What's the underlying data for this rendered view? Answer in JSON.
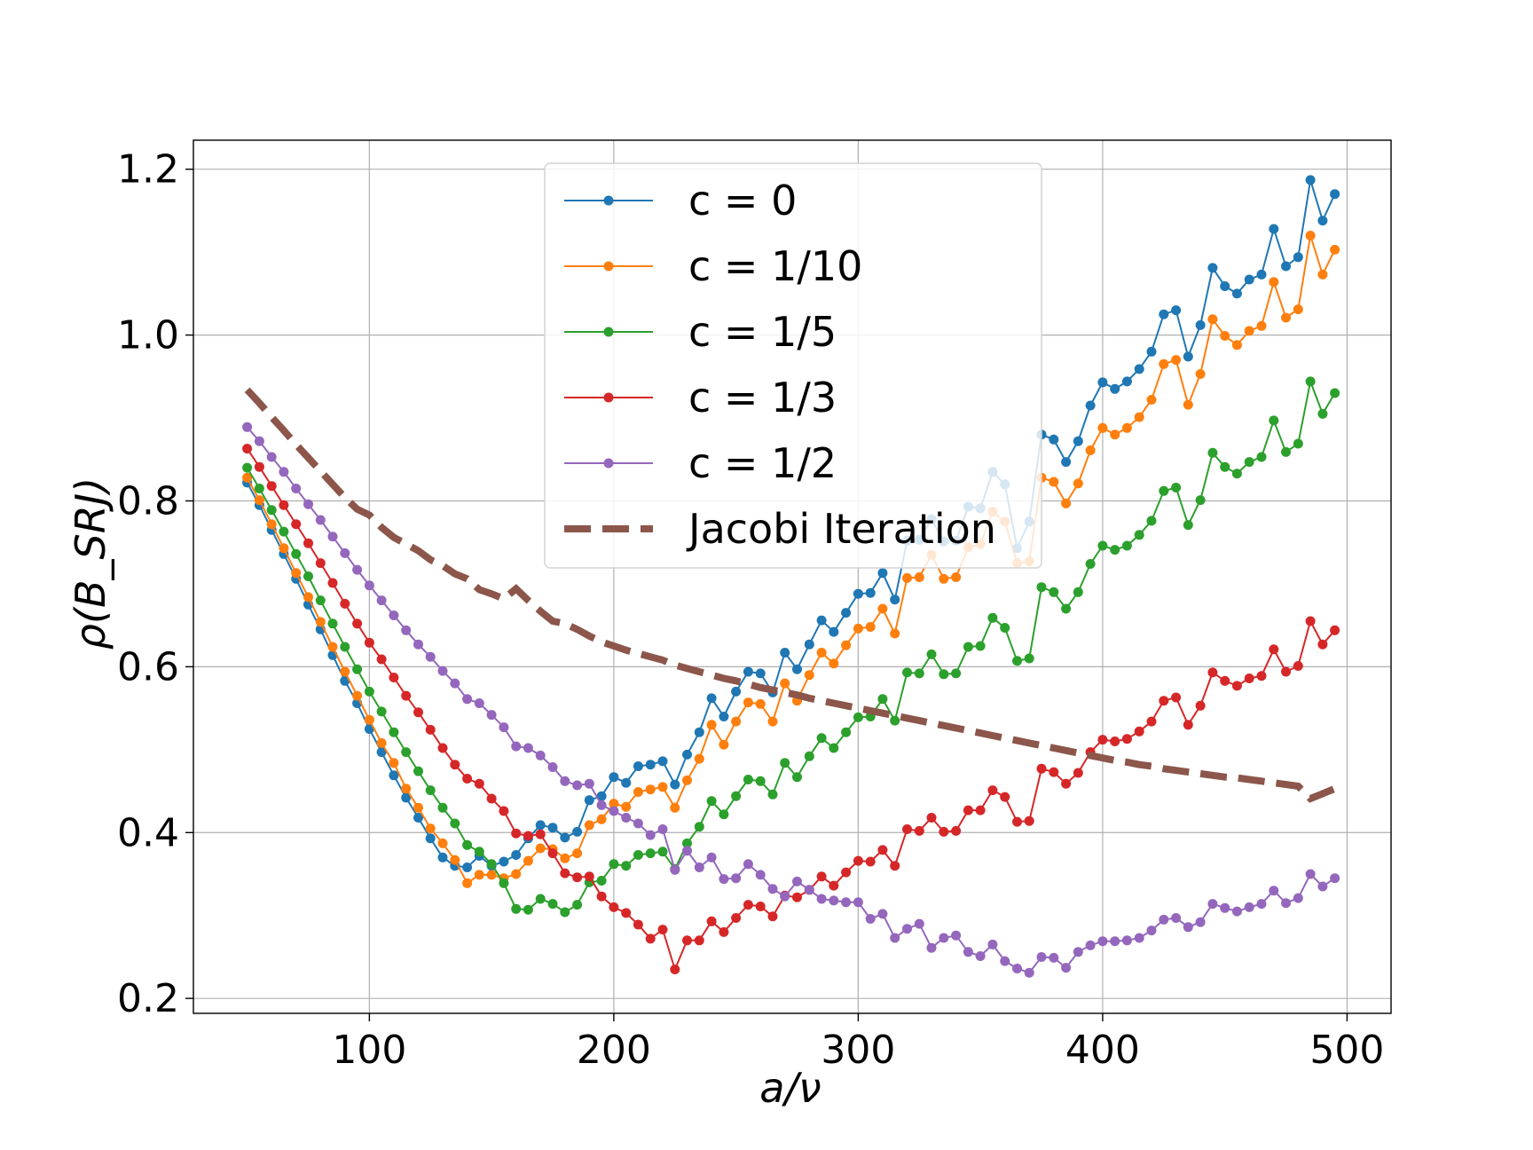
{
  "chart_data": {
    "type": "line",
    "xlabel": "a/ν",
    "ylabel": "ρ(B_SRJ)",
    "xlim": [
      28,
      518
    ],
    "ylim": [
      0.182,
      1.235
    ],
    "xticks": [
      100,
      200,
      300,
      400,
      500
    ],
    "yticks": [
      0.2,
      0.4,
      0.6,
      0.8,
      1.0,
      1.2
    ],
    "xtick_labels": [
      "100",
      "200",
      "300",
      "400",
      "500"
    ],
    "ytick_labels": [
      "0.2",
      "0.4",
      "0.6",
      "0.8",
      "1.0",
      "1.2"
    ],
    "grid": true,
    "legend": "top-center",
    "x": [
      50,
      55,
      60,
      65,
      70,
      75,
      80,
      85,
      90,
      95,
      100,
      105,
      110,
      115,
      120,
      125,
      130,
      135,
      140,
      145,
      150,
      155,
      160,
      165,
      170,
      175,
      180,
      185,
      190,
      195,
      200,
      205,
      210,
      215,
      220,
      225,
      230,
      235,
      240,
      245,
      250,
      255,
      260,
      265,
      270,
      275,
      280,
      285,
      290,
      295,
      300,
      305,
      310,
      315,
      320,
      325,
      330,
      335,
      340,
      345,
      350,
      355,
      360,
      365,
      370,
      375,
      380,
      385,
      390,
      395,
      400,
      405,
      410,
      415,
      420,
      425,
      430,
      435,
      440,
      445,
      450,
      455,
      460,
      465,
      470,
      475,
      480,
      485,
      490,
      495
    ],
    "series": [
      {
        "name": "c = 0",
        "color": "#1f77b4",
        "style": "line-marker",
        "values": [
          0.822,
          0.795,
          0.765,
          0.736,
          0.706,
          0.675,
          0.645,
          0.614,
          0.583,
          0.556,
          0.525,
          0.497,
          0.469,
          0.442,
          0.418,
          0.393,
          0.37,
          0.36,
          0.358,
          0.372,
          0.36,
          0.365,
          0.373,
          0.393,
          0.409,
          0.406,
          0.394,
          0.401,
          0.439,
          0.444,
          0.467,
          0.46,
          0.48,
          0.482,
          0.486,
          0.458,
          0.494,
          0.521,
          0.562,
          0.54,
          0.57,
          0.594,
          0.592,
          0.569,
          0.617,
          0.597,
          0.627,
          0.656,
          0.642,
          0.665,
          0.688,
          0.689,
          0.713,
          0.681,
          0.752,
          0.753,
          0.778,
          0.751,
          0.752,
          0.793,
          0.791,
          0.835,
          0.82,
          0.743,
          0.775,
          0.88,
          0.874,
          0.847,
          0.872,
          0.915,
          0.943,
          0.935,
          0.944,
          0.959,
          0.98,
          1.025,
          1.03,
          0.974,
          1.012,
          1.081,
          1.059,
          1.05,
          1.067,
          1.073,
          1.128,
          1.083,
          1.094,
          1.187,
          1.138,
          1.17
        ]
      },
      {
        "name": "c = 1/10",
        "color": "#ff7f0e",
        "style": "line-marker",
        "values": [
          0.828,
          0.801,
          0.772,
          0.743,
          0.713,
          0.684,
          0.654,
          0.624,
          0.594,
          0.565,
          0.536,
          0.508,
          0.484,
          0.453,
          0.43,
          0.405,
          0.387,
          0.367,
          0.339,
          0.349,
          0.349,
          0.345,
          0.35,
          0.366,
          0.381,
          0.38,
          0.369,
          0.375,
          0.409,
          0.416,
          0.435,
          0.431,
          0.449,
          0.452,
          0.455,
          0.43,
          0.463,
          0.489,
          0.53,
          0.506,
          0.534,
          0.557,
          0.555,
          0.534,
          0.58,
          0.559,
          0.59,
          0.617,
          0.604,
          0.626,
          0.646,
          0.648,
          0.67,
          0.64,
          0.707,
          0.708,
          0.735,
          0.706,
          0.708,
          0.744,
          0.748,
          0.787,
          0.775,
          0.725,
          0.727,
          0.828,
          0.823,
          0.797,
          0.821,
          0.861,
          0.888,
          0.88,
          0.888,
          0.901,
          0.922,
          0.965,
          0.97,
          0.916,
          0.953,
          1.019,
          0.999,
          0.988,
          1.005,
          1.011,
          1.064,
          1.021,
          1.031,
          1.12,
          1.073,
          1.103
        ]
      },
      {
        "name": "c = 1/5",
        "color": "#2ca02c",
        "style": "line-marker",
        "values": [
          0.84,
          0.815,
          0.789,
          0.763,
          0.736,
          0.709,
          0.68,
          0.652,
          0.624,
          0.597,
          0.57,
          0.546,
          0.521,
          0.497,
          0.474,
          0.451,
          0.43,
          0.411,
          0.385,
          0.377,
          0.362,
          0.339,
          0.308,
          0.307,
          0.32,
          0.314,
          0.304,
          0.313,
          0.34,
          0.342,
          0.362,
          0.36,
          0.373,
          0.375,
          0.377,
          0.356,
          0.387,
          0.407,
          0.438,
          0.422,
          0.444,
          0.464,
          0.462,
          0.446,
          0.484,
          0.467,
          0.492,
          0.514,
          0.502,
          0.521,
          0.539,
          0.54,
          0.561,
          0.535,
          0.593,
          0.592,
          0.615,
          0.591,
          0.592,
          0.624,
          0.625,
          0.659,
          0.647,
          0.607,
          0.61,
          0.696,
          0.69,
          0.67,
          0.69,
          0.724,
          0.746,
          0.741,
          0.746,
          0.759,
          0.776,
          0.812,
          0.816,
          0.771,
          0.801,
          0.858,
          0.841,
          0.833,
          0.847,
          0.853,
          0.897,
          0.859,
          0.869,
          0.944,
          0.905,
          0.93
        ]
      },
      {
        "name": "c = 1/3",
        "color": "#d62728",
        "style": "line-marker",
        "values": [
          0.863,
          0.841,
          0.818,
          0.795,
          0.772,
          0.749,
          0.725,
          0.701,
          0.676,
          0.652,
          0.629,
          0.609,
          0.587,
          0.565,
          0.545,
          0.524,
          0.502,
          0.482,
          0.465,
          0.459,
          0.441,
          0.426,
          0.399,
          0.396,
          0.398,
          0.375,
          0.351,
          0.346,
          0.347,
          0.323,
          0.31,
          0.303,
          0.289,
          0.272,
          0.283,
          0.235,
          0.27,
          0.27,
          0.293,
          0.28,
          0.297,
          0.313,
          0.311,
          0.299,
          0.324,
          0.322,
          0.331,
          0.347,
          0.336,
          0.352,
          0.366,
          0.365,
          0.379,
          0.36,
          0.404,
          0.402,
          0.418,
          0.401,
          0.402,
          0.427,
          0.427,
          0.451,
          0.443,
          0.413,
          0.414,
          0.477,
          0.473,
          0.459,
          0.472,
          0.497,
          0.512,
          0.51,
          0.513,
          0.522,
          0.534,
          0.559,
          0.563,
          0.53,
          0.553,
          0.593,
          0.583,
          0.577,
          0.586,
          0.589,
          0.621,
          0.594,
          0.601,
          0.655,
          0.627,
          0.644
        ]
      },
      {
        "name": "c = 1/2",
        "color": "#9467bd",
        "style": "line-marker",
        "values": [
          0.889,
          0.872,
          0.853,
          0.835,
          0.815,
          0.796,
          0.777,
          0.757,
          0.737,
          0.717,
          0.698,
          0.68,
          0.662,
          0.644,
          0.627,
          0.612,
          0.595,
          0.58,
          0.561,
          0.556,
          0.542,
          0.527,
          0.504,
          0.502,
          0.493,
          0.479,
          0.462,
          0.457,
          0.459,
          0.433,
          0.426,
          0.418,
          0.411,
          0.397,
          0.404,
          0.355,
          0.378,
          0.358,
          0.37,
          0.344,
          0.345,
          0.362,
          0.349,
          0.332,
          0.323,
          0.341,
          0.331,
          0.32,
          0.318,
          0.316,
          0.316,
          0.296,
          0.302,
          0.273,
          0.284,
          0.29,
          0.261,
          0.273,
          0.276,
          0.256,
          0.251,
          0.265,
          0.245,
          0.236,
          0.231,
          0.25,
          0.249,
          0.237,
          0.256,
          0.264,
          0.269,
          0.269,
          0.27,
          0.273,
          0.282,
          0.295,
          0.297,
          0.286,
          0.292,
          0.314,
          0.309,
          0.305,
          0.31,
          0.314,
          0.33,
          0.315,
          0.321,
          0.35,
          0.335,
          0.345
        ]
      },
      {
        "name": "Jacobi Iteration",
        "color": "#8c564b",
        "style": "dashed",
        "values": [
          0.934,
          0.918,
          0.901,
          0.885,
          0.868,
          0.852,
          0.836,
          0.82,
          0.804,
          0.79,
          0.783,
          0.768,
          0.756,
          0.748,
          0.74,
          0.729,
          0.722,
          0.712,
          0.706,
          0.693,
          0.688,
          0.682,
          0.694,
          0.68,
          0.667,
          0.655,
          0.652,
          0.645,
          0.637,
          0.63,
          0.625,
          0.62,
          0.616,
          0.612,
          0.608,
          0.602,
          0.598,
          0.594,
          0.59,
          0.586,
          0.583,
          0.579,
          0.575,
          0.572,
          0.569,
          0.566,
          0.562,
          0.559,
          0.556,
          0.553,
          0.55,
          0.547,
          0.544,
          0.541,
          0.538,
          0.535,
          0.532,
          0.529,
          0.526,
          0.523,
          0.52,
          0.517,
          0.514,
          0.511,
          0.508,
          0.505,
          0.502,
          0.499,
          0.496,
          0.493,
          0.49,
          0.487,
          0.485,
          0.482,
          0.48,
          0.477,
          0.475,
          0.473,
          0.471,
          0.469,
          0.467,
          0.466,
          0.464,
          0.462,
          0.46,
          0.458,
          0.456,
          0.441,
          0.447,
          0.453
        ]
      }
    ]
  }
}
